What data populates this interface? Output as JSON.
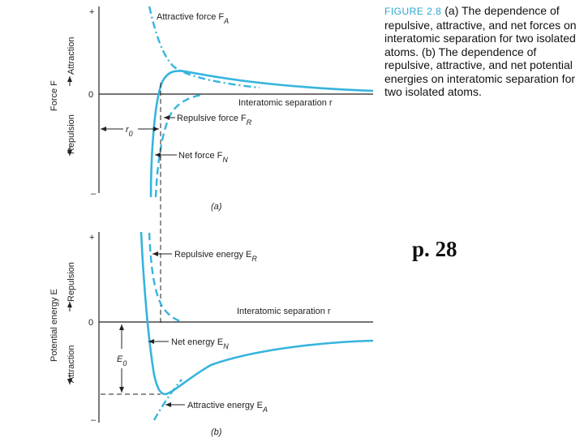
{
  "caption": {
    "figure_label": "FIGURE 2.8",
    "text": "(a) The dependence of repulsive, attractive, and net forces on interatomic separation for two isolated atoms. (b) The dependence of repulsive, attractive, and net potential energies on interatomic separation for two isolated atoms."
  },
  "page_ref": "p. 28",
  "panel_a": {
    "tag": "(a)",
    "y_axis_label": "Force F",
    "plus": "+",
    "minus": "–",
    "zero": "0",
    "attraction": "Attraction",
    "repulsion": "Repulsion",
    "attractive_force": "Attractive force F",
    "attractive_force_sub": "A",
    "repulsive_force": "Repulsive force F",
    "repulsive_force_sub": "R",
    "net_force": "Net force F",
    "net_force_sub": "N",
    "separation": "Interatomic separation r",
    "r0": "r",
    "r0_sub": "0"
  },
  "panel_b": {
    "tag": "(b)",
    "y_axis_label": "Potential energy E",
    "plus": "+",
    "minus": "–",
    "zero": "0",
    "attraction": "Attraction",
    "repulsion": "Repulsion",
    "repulsive_energy": "Repulsive energy E",
    "repulsive_energy_sub": "R",
    "net_energy": "Net energy E",
    "net_energy_sub": "N",
    "attractive_energy": "Attractive energy E",
    "attractive_energy_sub": "A",
    "separation": "Interatomic separation r",
    "e0": "E",
    "e0_sub": "0"
  },
  "colors": {
    "curve": "#35b4de",
    "axis": "#222222",
    "heading": "#2aa6cf"
  }
}
